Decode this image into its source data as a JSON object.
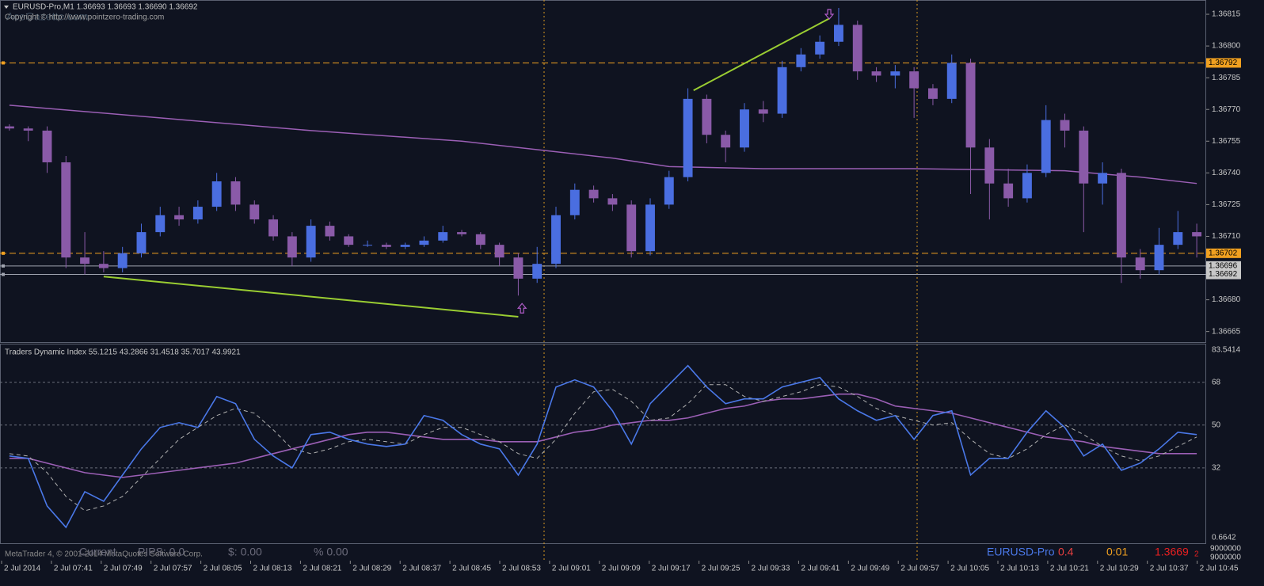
{
  "header": {
    "symbol_line": "EURUSD-Pro,M1  1.36693 1.36693 1.36690 1.36692",
    "copyright": "Copyright © http://www.pointzero-trading.com",
    "watermark": "AceGazette.com"
  },
  "chart_data": [
    {
      "type": "candlestick",
      "up_color": "#4a6ee0",
      "down_color": "#8a5aa8",
      "ohlc": [
        [
          1.36762,
          1.36763,
          1.3676,
          1.36761
        ],
        [
          1.36761,
          1.36762,
          1.36755,
          1.3676
        ],
        [
          1.3676,
          1.36762,
          1.3674,
          1.36745
        ],
        [
          1.36745,
          1.36748,
          1.36695,
          1.367
        ],
        [
          1.367,
          1.36712,
          1.36692,
          1.36697
        ],
        [
          1.36697,
          1.36703,
          1.36693,
          1.36695
        ],
        [
          1.36695,
          1.36705,
          1.36693,
          1.36702
        ],
        [
          1.36702,
          1.36716,
          1.367,
          1.36712
        ],
        [
          1.36712,
          1.36724,
          1.3671,
          1.3672
        ],
        [
          1.3672,
          1.36724,
          1.36715,
          1.36718
        ],
        [
          1.36718,
          1.36727,
          1.36716,
          1.36724
        ],
        [
          1.36724,
          1.3674,
          1.36722,
          1.36736
        ],
        [
          1.36736,
          1.36738,
          1.36722,
          1.36725
        ],
        [
          1.36725,
          1.36727,
          1.36716,
          1.36718
        ],
        [
          1.36718,
          1.3672,
          1.36708,
          1.3671
        ],
        [
          1.3671,
          1.36712,
          1.36696,
          1.367
        ],
        [
          1.367,
          1.36718,
          1.36698,
          1.36715
        ],
        [
          1.36715,
          1.36717,
          1.36708,
          1.3671
        ],
        [
          1.3671,
          1.36711,
          1.36705,
          1.36706
        ],
        [
          1.36706,
          1.36708,
          1.36705,
          1.36706
        ],
        [
          1.36706,
          1.36707,
          1.36704,
          1.36705
        ],
        [
          1.36705,
          1.36707,
          1.36704,
          1.36706
        ],
        [
          1.36706,
          1.3671,
          1.36705,
          1.36708
        ],
        [
          1.36708,
          1.36715,
          1.36707,
          1.36712
        ],
        [
          1.36712,
          1.36713,
          1.3671,
          1.36711
        ],
        [
          1.36711,
          1.36712,
          1.36704,
          1.36706
        ],
        [
          1.36706,
          1.36707,
          1.36696,
          1.367
        ],
        [
          1.367,
          1.36702,
          1.36682,
          1.3669
        ],
        [
          1.3669,
          1.36705,
          1.36688,
          1.36697
        ],
        [
          1.36697,
          1.36724,
          1.36695,
          1.3672
        ],
        [
          1.3672,
          1.36735,
          1.36718,
          1.36732
        ],
        [
          1.36732,
          1.36734,
          1.36726,
          1.36728
        ],
        [
          1.36728,
          1.3673,
          1.36722,
          1.36725
        ],
        [
          1.36725,
          1.36727,
          1.367,
          1.36703
        ],
        [
          1.36703,
          1.36728,
          1.36701,
          1.36725
        ],
        [
          1.36725,
          1.36741,
          1.36723,
          1.36738
        ],
        [
          1.36738,
          1.3678,
          1.36736,
          1.36775
        ],
        [
          1.36775,
          1.36777,
          1.36754,
          1.36758
        ],
        [
          1.36758,
          1.3676,
          1.36745,
          1.36752
        ],
        [
          1.36752,
          1.36773,
          1.3675,
          1.3677
        ],
        [
          1.3677,
          1.36774,
          1.36764,
          1.36768
        ],
        [
          1.36768,
          1.36793,
          1.36766,
          1.3679
        ],
        [
          1.3679,
          1.36799,
          1.36788,
          1.36796
        ],
        [
          1.36796,
          1.36805,
          1.36794,
          1.36802
        ],
        [
          1.36802,
          1.36818,
          1.368,
          1.3681
        ],
        [
          1.3681,
          1.36812,
          1.36784,
          1.36788
        ],
        [
          1.36788,
          1.3679,
          1.36783,
          1.36786
        ],
        [
          1.36786,
          1.36791,
          1.3678,
          1.36788
        ],
        [
          1.36788,
          1.3679,
          1.36766,
          1.3678
        ],
        [
          1.3678,
          1.36782,
          1.36772,
          1.36775
        ],
        [
          1.36775,
          1.36796,
          1.36773,
          1.36792
        ],
        [
          1.36792,
          1.36794,
          1.3673,
          1.36752
        ],
        [
          1.36752,
          1.36756,
          1.36718,
          1.36735
        ],
        [
          1.36735,
          1.36742,
          1.36724,
          1.36728
        ],
        [
          1.36728,
          1.36744,
          1.36726,
          1.3674
        ],
        [
          1.3674,
          1.36772,
          1.36738,
          1.36765
        ],
        [
          1.36765,
          1.36768,
          1.36752,
          1.3676
        ],
        [
          1.3676,
          1.36762,
          1.36712,
          1.36735
        ],
        [
          1.36735,
          1.36745,
          1.36725,
          1.3674
        ],
        [
          1.3674,
          1.36742,
          1.36688,
          1.367
        ],
        [
          1.367,
          1.36704,
          1.3669,
          1.36694
        ],
        [
          1.36694,
          1.36714,
          1.36692,
          1.36706
        ],
        [
          1.36706,
          1.36722,
          1.36704,
          1.36712
        ],
        [
          1.36712,
          1.36716,
          1.367,
          1.3671
        ]
      ],
      "ma": {
        "color": "#9b5fb5",
        "x": [
          0,
          8,
          16,
          24,
          32,
          35,
          40,
          48,
          56,
          60,
          63
        ],
        "values": [
          1.36772,
          1.36766,
          1.3676,
          1.36755,
          1.36747,
          1.36743,
          1.36742,
          1.36742,
          1.36741,
          1.36738,
          1.36735
        ]
      },
      "trendlines": [
        {
          "color": "#9acd32",
          "x": [
            5,
            27
          ],
          "y": [
            1.36691,
            1.36672
          ]
        },
        {
          "color": "#9acd32",
          "x": [
            36.3,
            43.5
          ],
          "y": [
            1.36779,
            1.36813
          ]
        }
      ],
      "arrows": [
        {
          "x": 27.2,
          "y": 1.36676,
          "direction": "up",
          "color": "#b05cc8"
        },
        {
          "x": 43.5,
          "y": 1.36815,
          "direction": "down",
          "color": "#b05cc8"
        }
      ],
      "price_lines": [
        {
          "value": 1.36792,
          "color": "#f0a020",
          "style": "dashed"
        },
        {
          "value": 1.36702,
          "color": "#f0a020",
          "style": "dashed"
        },
        {
          "value": 1.36696,
          "color": "#a0a4b0",
          "style": "solid"
        },
        {
          "value": 1.36692,
          "color": "#a0a4b0",
          "style": "solid"
        }
      ],
      "ylim": [
        1.3666,
        1.36821
      ],
      "yticks": [
        1.36815,
        {
          "value": 1.368,
          "label": "1.36800"
        },
        1.36785,
        {
          "value": 1.3677,
          "label": "1.36770"
        },
        1.36755,
        {
          "value": 1.3674,
          "label": "1.36740"
        },
        1.36725,
        {
          "value": 1.3671,
          "label": "1.36710"
        },
        1.36695,
        {
          "value": 1.3668,
          "label": "1.36680"
        },
        1.36665
      ]
    },
    {
      "type": "line",
      "title": "Traders Dynamic Index 55.1215 43.2866 31.4518 35.7017 43.9921",
      "series": [
        {
          "color": "#9b5fb5",
          "dash": false,
          "values": [
            36,
            36,
            34,
            32,
            30,
            29,
            28,
            29,
            30,
            31,
            32,
            33,
            34,
            36,
            38,
            40,
            42,
            44,
            46,
            47,
            47,
            46,
            45,
            44,
            44,
            44,
            43,
            43,
            43,
            45,
            47,
            48,
            50,
            51,
            52,
            52,
            53,
            55,
            57,
            58,
            60,
            61,
            61,
            62,
            63,
            63,
            61,
            58,
            57,
            56,
            55,
            53,
            51,
            49,
            47,
            45,
            44,
            43,
            41,
            40,
            39,
            38,
            38,
            38
          ]
        },
        {
          "color": "#b0b0b0",
          "dash": true,
          "values": [
            38,
            37,
            30,
            20,
            14,
            16,
            20,
            28,
            36,
            44,
            49,
            54,
            57,
            55,
            48,
            40,
            38,
            40,
            43,
            44,
            43,
            42,
            46,
            49,
            49,
            46,
            43,
            38,
            36,
            44,
            55,
            64,
            65,
            60,
            52,
            53,
            59,
            67,
            67,
            62,
            60,
            62,
            64,
            67,
            66,
            62,
            57,
            54,
            52,
            50,
            51,
            44,
            38,
            36,
            40,
            46,
            50,
            46,
            41,
            37,
            35,
            37,
            41,
            45
          ]
        },
        {
          "color": "#4a78e8",
          "dash": false,
          "values": [
            37,
            36,
            16,
            7,
            22,
            18,
            29,
            40,
            49,
            51,
            49,
            62,
            59,
            44,
            37,
            32,
            46,
            47,
            44,
            42,
            41,
            42,
            54,
            52,
            46,
            42,
            40,
            29,
            42,
            66,
            69,
            66,
            56,
            42,
            59,
            67,
            75,
            66,
            59,
            61,
            61,
            66,
            68,
            70,
            61,
            56,
            52,
            54,
            44,
            54,
            56,
            29,
            36,
            36,
            47,
            56,
            49,
            37,
            42,
            31,
            34,
            40,
            47,
            46
          ]
        }
      ],
      "ylim": [
        0.6642,
        83.5414
      ],
      "yticks": [
        83.5414,
        68,
        50,
        32,
        0.6642
      ],
      "grid": true
    }
  ],
  "time_labels": [
    "2 Jul 2014",
    "2 Jul 07:41",
    "2 Jul 07:49",
    "2 Jul 07:57",
    "2 Jul 08:05",
    "2 Jul 08:13",
    "2 Jul 08:21",
    "2 Jul 08:29",
    "2 Jul 08:37",
    "2 Jul 08:45",
    "2 Jul 08:53",
    "2 Jul 09:01",
    "2 Jul 09:09",
    "2 Jul 09:17",
    "2 Jul 09:25",
    "2 Jul 09:33",
    "2 Jul 09:41",
    "2 Jul 09:49",
    "2 Jul 09:57",
    "2 Jul 10:05",
    "2 Jul 10:13",
    "2 Jul 10:21",
    "2 Jul 10:29",
    "2 Jul 10:37",
    "2 Jul 10:45"
  ],
  "status_bar": {
    "platform": "MetaTrader 4, © 2001-2014 MetaQuotes Software Corp.",
    "current": "Current",
    "pips": "PIPS: 0.0",
    "dollars": "$: 0.00",
    "percent": "% 0.00",
    "symbol": "EURUSD-Pro",
    "spread": 0.4,
    "timer": "0:01",
    "price": 1.3669,
    "price_digit": 2,
    "volume_top": 9000000,
    "volume_bottom": 9000000
  }
}
